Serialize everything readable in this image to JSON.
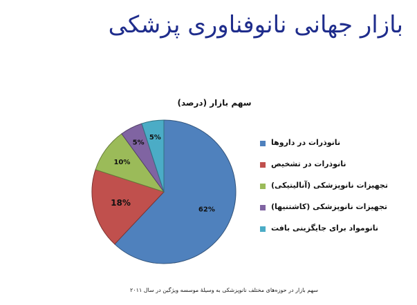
{
  "slide": {
    "title": "بازار جهانی نانوفناوری پزشکی",
    "footnote": "سهم بازار در حوزه‌های مختلف نانوپزشکی به وسیلهٔ موسسه ویژگین در سال ۲۰۱۱"
  },
  "chart_data": {
    "type": "pie",
    "title": "سهم بازار (درصد)",
    "legend_position": "right",
    "slices": [
      {
        "name": "نانوذرات در داروها",
        "value": 62,
        "label": "62%",
        "color": "#4f81bd"
      },
      {
        "name": "نانوذرات در تشخیص",
        "value": 18,
        "label": "18%",
        "color": "#c0504d"
      },
      {
        "name": "تجهیزات نانوپزشکی (آنالیتیکی)",
        "value": 10,
        "label": "10%",
        "color": "#9bbb59"
      },
      {
        "name": "تجهیزات نانوپزشکی (کاشتنیها)",
        "value": 5,
        "label": "5%",
        "color": "#8064a2"
      },
      {
        "name": "نانومواد برای جایگزینی بافت",
        "value": 5,
        "label": "5%",
        "color": "#4bacc6"
      }
    ]
  }
}
